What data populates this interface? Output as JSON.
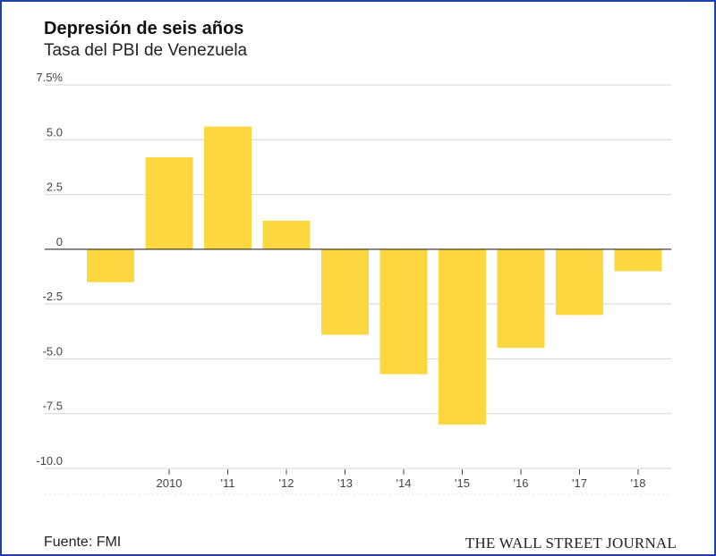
{
  "chart_data": {
    "type": "bar",
    "title": "Depresión de seis años",
    "subtitle": "Tasa del PBI de Venezuela",
    "categories": [
      "",
      "2010",
      "'11",
      "'12",
      "'13",
      "'14",
      "'15",
      "'16",
      "'17",
      "'18"
    ],
    "values": [
      -1.5,
      4.2,
      5.6,
      1.3,
      -3.9,
      -5.7,
      -8.0,
      -4.5,
      -3.0,
      -1.0
    ],
    "ylim": [
      -10,
      7.5
    ],
    "yticks": [
      7.5,
      5,
      2.5,
      0,
      -2.5,
      -5,
      -7.5,
      -10
    ],
    "ytick_labels": [
      "7.5%",
      "5.0",
      "2.5",
      "0",
      "-2.5",
      "-5.0",
      "-7.5",
      "-10.0"
    ],
    "xlabel": "",
    "ylabel": "",
    "grid": true,
    "bar_color": "#fdd73f"
  },
  "footer": {
    "source": "Fuente: FMI",
    "brand": "THE WALL STREET JOURNAL"
  }
}
